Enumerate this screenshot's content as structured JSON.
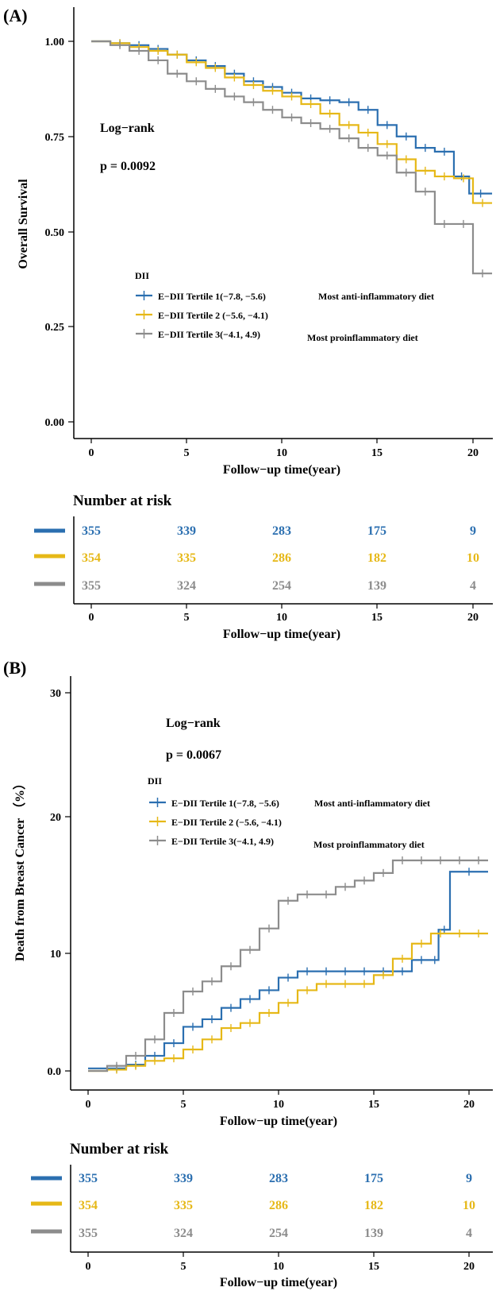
{
  "colors": {
    "t1": "#2b6fb0",
    "t2": "#e6b817",
    "t3": "#8c8c8c",
    "axis": "#000000"
  },
  "series_labels": [
    "E−DII Tertile 1(−7.8, −5.6)",
    "E−DII Tertile 2 (−5.6, −4.1)",
    "E−DII Tertile 3(−4.1, 4.9)"
  ],
  "annotations": {
    "anti": "Most anti-inflammatory diet",
    "pro": "Most proinflammatory diet"
  },
  "panels": [
    {
      "label": "(A)",
      "logrank": "Log−rank",
      "pvalue": "p = 0.0092",
      "legend_title": "DII",
      "ylabel": "Overall Survival",
      "xlabel": "Follow−up time(year)",
      "yticks": [
        "0.00",
        "0.25",
        "0.50",
        "0.75",
        "1.00"
      ],
      "xticks": [
        "0",
        "5",
        "10",
        "15",
        "20"
      ],
      "risk_title": "Number at risk",
      "risk_xlabel": "Follow−up time(year)",
      "risk": [
        [
          "355",
          "339",
          "283",
          "175",
          "9"
        ],
        [
          "354",
          "335",
          "286",
          "182",
          "10"
        ],
        [
          "355",
          "324",
          "254",
          "139",
          "4"
        ]
      ]
    },
    {
      "label": "(B)",
      "logrank": "Log−rank",
      "pvalue": "p = 0.0067",
      "legend_title": "DII",
      "ylabel": "Death from Breast Cancer （%）",
      "xlabel": "Follow−up time(year)",
      "yticks": [
        "0.0",
        "10",
        "20",
        "30"
      ],
      "xticks": [
        "0",
        "5",
        "10",
        "15",
        "20"
      ],
      "risk_title": "Number at risk",
      "risk_xlabel": "Follow−up time(year)",
      "risk": [
        [
          "355",
          "339",
          "283",
          "175",
          "9"
        ],
        [
          "354",
          "335",
          "286",
          "182",
          "10"
        ],
        [
          "355",
          "324",
          "254",
          "139",
          "4"
        ]
      ]
    }
  ],
  "chart_data": [
    {
      "type": "line",
      "subtype": "kaplan-meier-survival",
      "xlim": [
        0,
        21
      ],
      "ylim": [
        0,
        1
      ],
      "series": [
        {
          "name": "E−DII Tertile 1(−7.8, −5.6)",
          "x": [
            0,
            1,
            2,
            3,
            4,
            5,
            6,
            7,
            8,
            9,
            10,
            11,
            12,
            13,
            14,
            15,
            16,
            17,
            18,
            19,
            19.8,
            21
          ],
          "y": [
            1.0,
            0.995,
            0.99,
            0.98,
            0.965,
            0.95,
            0.935,
            0.915,
            0.895,
            0.88,
            0.865,
            0.85,
            0.845,
            0.84,
            0.82,
            0.78,
            0.75,
            0.72,
            0.71,
            0.645,
            0.6,
            0.6
          ]
        },
        {
          "name": "E−DII Tertile 2 (−5.6, −4.1)",
          "x": [
            0,
            1,
            2,
            3,
            4,
            5,
            6,
            7,
            8,
            9,
            10,
            11,
            12,
            13,
            14,
            15,
            16,
            17,
            18,
            19,
            20,
            21
          ],
          "y": [
            1.0,
            0.995,
            0.985,
            0.975,
            0.965,
            0.945,
            0.93,
            0.905,
            0.885,
            0.87,
            0.855,
            0.835,
            0.81,
            0.78,
            0.76,
            0.73,
            0.69,
            0.66,
            0.645,
            0.64,
            0.575,
            0.575
          ]
        },
        {
          "name": "E−DII Tertile 3(−4.1, 4.9)",
          "x": [
            0,
            1,
            2,
            3,
            4,
            5,
            6,
            7,
            8,
            9,
            10,
            11,
            12,
            13,
            14,
            15,
            16,
            17,
            18,
            19,
            20,
            21
          ],
          "y": [
            1.0,
            0.99,
            0.975,
            0.95,
            0.915,
            0.895,
            0.875,
            0.855,
            0.84,
            0.82,
            0.8,
            0.785,
            0.77,
            0.745,
            0.72,
            0.7,
            0.655,
            0.605,
            0.52,
            0.52,
            0.39,
            0.39
          ]
        }
      ]
    },
    {
      "type": "line",
      "subtype": "cumulative-incidence",
      "xlim": [
        0,
        21
      ],
      "ylim": [
        0,
        30
      ],
      "series": [
        {
          "name": "E−DII Tertile 1(−7.8, −5.6)",
          "x": [
            0,
            1,
            2,
            3,
            4,
            5,
            6,
            7,
            8,
            9,
            10,
            11,
            12,
            13,
            14,
            15,
            16,
            17,
            18,
            18.4,
            19,
            21
          ],
          "y": [
            0.2,
            0.2,
            0.5,
            1.2,
            2.2,
            3.5,
            4.1,
            5.0,
            5.7,
            6.4,
            7.4,
            7.9,
            7.9,
            7.9,
            7.9,
            7.9,
            7.9,
            8.8,
            8.8,
            11.2,
            15.8,
            15.8
          ]
        },
        {
          "name": "E−DII Tertile 2 (−5.6, −4.1)",
          "x": [
            0,
            1,
            2,
            3,
            4,
            5,
            6,
            7,
            8,
            9,
            10,
            11,
            12,
            13,
            14,
            15,
            16,
            17,
            18,
            19,
            20,
            21
          ],
          "y": [
            0.0,
            0.1,
            0.4,
            0.8,
            1.0,
            1.7,
            2.5,
            3.4,
            3.8,
            4.6,
            5.4,
            6.4,
            6.9,
            6.9,
            6.9,
            7.6,
            8.9,
            10.1,
            10.9,
            10.9,
            10.9,
            10.9
          ]
        },
        {
          "name": "E−DII Tertile 3(−4.1, 4.9)",
          "x": [
            0,
            1,
            2,
            3,
            4,
            5,
            6,
            7,
            8,
            9,
            10,
            11,
            12,
            13,
            14,
            15,
            16,
            17,
            18,
            19,
            20,
            21
          ],
          "y": [
            0.0,
            0.4,
            1.2,
            2.5,
            4.6,
            6.3,
            7.1,
            8.3,
            9.6,
            11.3,
            13.5,
            14.0,
            14.0,
            14.6,
            15.1,
            15.7,
            16.7,
            16.7,
            16.7,
            16.7,
            16.7,
            16.7
          ]
        }
      ]
    }
  ]
}
